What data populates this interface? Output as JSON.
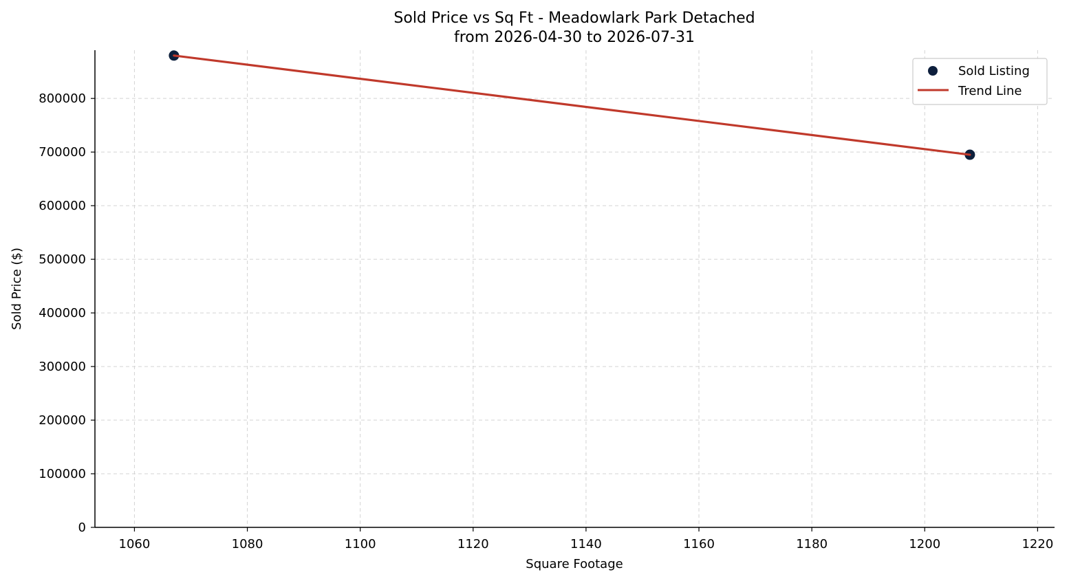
{
  "chart_data": {
    "type": "scatter",
    "title": "Sold Price vs Sq Ft - Meadowlark Park Detached",
    "subtitle": "from 2026-04-30 to 2026-07-31",
    "xlabel": "Square Footage",
    "ylabel": "Sold Price ($)",
    "xlim": [
      1053,
      1223
    ],
    "ylim": [
      0,
      890000
    ],
    "x_ticks": [
      1060,
      1080,
      1100,
      1120,
      1140,
      1160,
      1180,
      1200,
      1220
    ],
    "y_ticks": [
      0,
      100000,
      200000,
      300000,
      400000,
      500000,
      600000,
      700000,
      800000
    ],
    "grid": true,
    "legend_position": "top-right",
    "series": [
      {
        "name": "Sold Listing",
        "kind": "scatter",
        "color": "#0d1f3c",
        "points": [
          {
            "x": 1067,
            "y": 880000
          },
          {
            "x": 1208,
            "y": 695000
          }
        ]
      },
      {
        "name": "Trend Line",
        "kind": "line",
        "color": "#c0392b",
        "points": [
          {
            "x": 1067,
            "y": 880000
          },
          {
            "x": 1208,
            "y": 695000
          }
        ]
      }
    ]
  }
}
